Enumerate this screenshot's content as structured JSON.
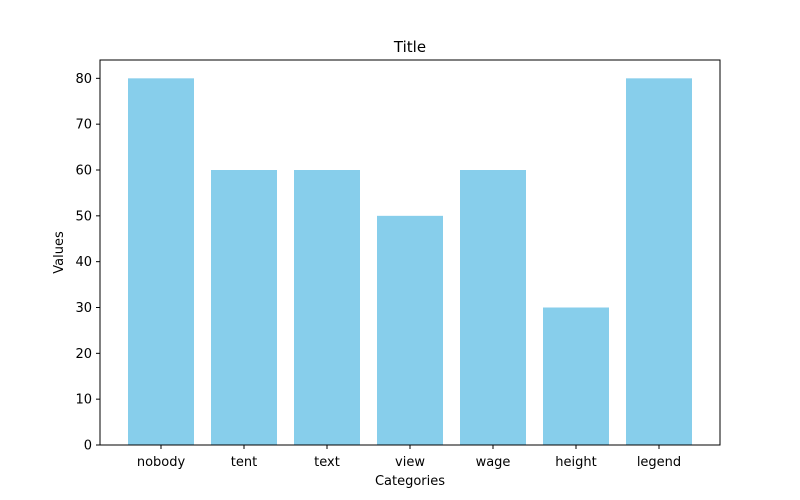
{
  "chart_data": {
    "type": "bar",
    "title": "Title",
    "xlabel": "Categories",
    "ylabel": "Values",
    "categories": [
      "nobody",
      "tent",
      "text",
      "view",
      "wage",
      "height",
      "legend"
    ],
    "values": [
      80,
      60,
      60,
      50,
      60,
      30,
      80
    ],
    "ylim": [
      0,
      84
    ],
    "yticks": [
      "0",
      "10",
      "20",
      "30",
      "40",
      "50",
      "60",
      "70",
      "80"
    ],
    "grid": false,
    "bar_color": "#87CEEB"
  }
}
